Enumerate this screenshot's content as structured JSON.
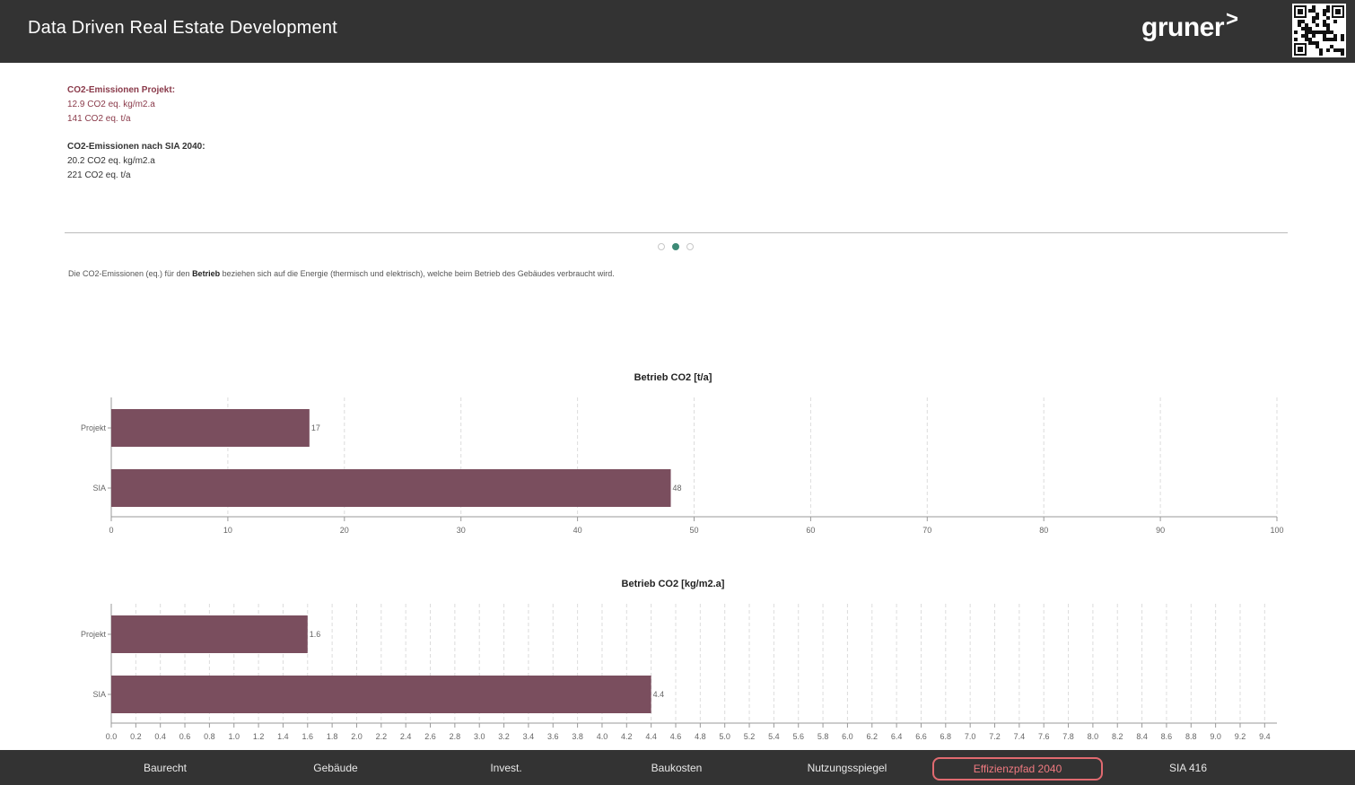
{
  "header": {
    "title": "Data Driven Real Estate Development",
    "logo_text": "gruner",
    "logo_arrow": ">"
  },
  "info": {
    "project": {
      "heading": "CO2-Emissionen Projekt:",
      "lines": [
        "12.9 CO2 eq. kg/m2.a",
        "141 CO2 eq. t/a"
      ]
    },
    "sia": {
      "heading": "CO2-Emissionen nach SIA 2040:",
      "lines": [
        "20.2 CO2 eq. kg/m2.a",
        "221 CO2 eq. t/a"
      ]
    }
  },
  "carousel": {
    "count": 3,
    "active": 1
  },
  "description": {
    "before": "Die CO2-Emissionen (eq.) für den ",
    "bold": "Betrieb",
    "after": " beziehen sich auf die Energie (thermisch und elektrisch), welche beim Betrieb des Gebäudes verbraucht wird."
  },
  "colors": {
    "header_bg": "#333333",
    "bar": "#7a4e5e",
    "accent_red": "#8a3a4a",
    "active_nav": "#e06a70",
    "active_dot": "#3d8a76"
  },
  "chart_data": [
    {
      "type": "bar",
      "orientation": "horizontal",
      "title": "Betrieb CO2 [t/a]",
      "categories": [
        "Projekt",
        "SIA"
      ],
      "values": [
        17,
        48
      ],
      "value_labels": [
        "17",
        "48"
      ],
      "xlim": [
        0,
        100
      ],
      "xticks": [
        0,
        10,
        20,
        30,
        40,
        50,
        60,
        70,
        80,
        90,
        100
      ],
      "grid": "vertical-dashed"
    },
    {
      "type": "bar",
      "orientation": "horizontal",
      "title": "Betrieb CO2 [kg/m2.a]",
      "categories": [
        "Projekt",
        "SIA"
      ],
      "values": [
        1.6,
        4.4
      ],
      "value_labels": [
        "1.6",
        "4.4"
      ],
      "xlim": [
        0,
        9.5
      ],
      "xticks": [
        0.0,
        0.2,
        0.4,
        0.6,
        0.8,
        1.0,
        1.2,
        1.4,
        1.6,
        1.8,
        2.0,
        2.2,
        2.4,
        2.6,
        2.8,
        3.0,
        3.2,
        3.4,
        3.6,
        3.8,
        4.0,
        4.2,
        4.4,
        4.6,
        4.8,
        5.0,
        5.2,
        5.4,
        5.6,
        5.8,
        6.0,
        6.2,
        6.4,
        6.6,
        6.8,
        7.0,
        7.2,
        7.4,
        7.6,
        7.8,
        8.0,
        8.2,
        8.4,
        8.6,
        8.8,
        9.0,
        9.2,
        9.4
      ],
      "tick_decimals": 1,
      "grid": "vertical-dashed"
    }
  ],
  "nav": {
    "items": [
      "Baurecht",
      "Gebäude",
      "Invest.",
      "Baukosten",
      "Nutzungsspiegel",
      "Effizienzpfad 2040",
      "SIA 416"
    ],
    "active": 5
  }
}
